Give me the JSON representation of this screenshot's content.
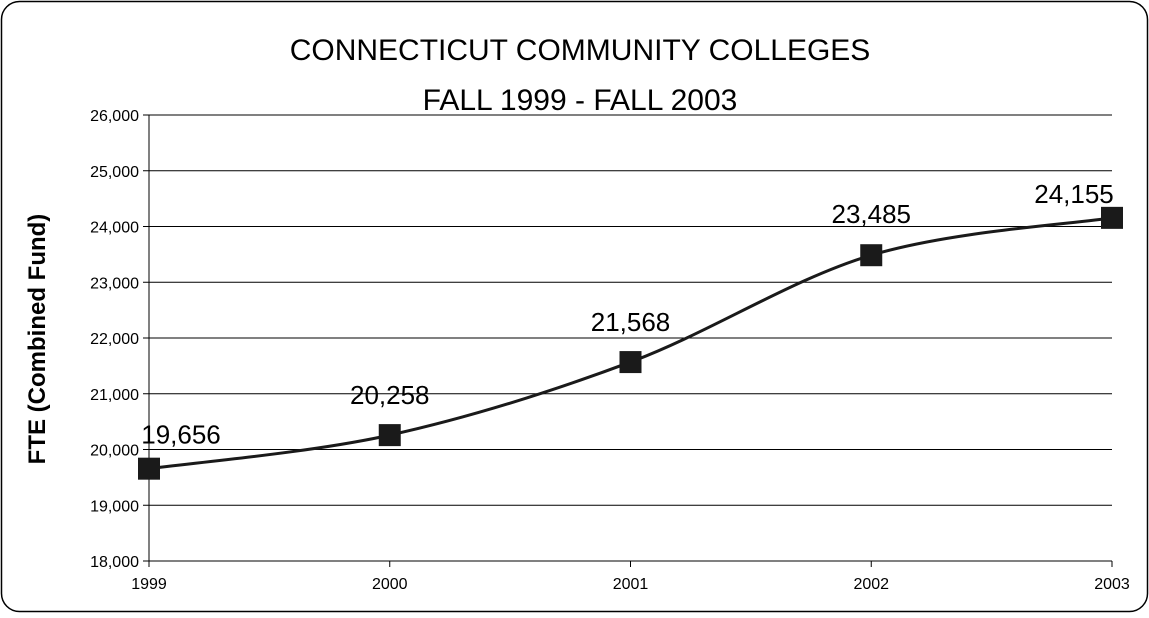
{
  "chart_data": {
    "type": "line",
    "title": [
      "CONNECTICUT COMMUNITY COLLEGES",
      "FALL 1999 - FALL 2003"
    ],
    "xlabel": "",
    "ylabel": "FTE (Combined Fund)",
    "categories": [
      "1999",
      "2000",
      "2001",
      "2002",
      "2003"
    ],
    "values": [
      19656,
      20258,
      21568,
      23485,
      24155
    ],
    "data_labels": [
      "19,656",
      "20,258",
      "21,568",
      "23,485",
      "24,155"
    ],
    "ylim": [
      18000,
      26000
    ],
    "yticks": [
      18000,
      19000,
      20000,
      21000,
      22000,
      23000,
      24000,
      25000,
      26000
    ],
    "ytick_labels": [
      "18,000",
      "19,000",
      "20,000",
      "21,000",
      "22,000",
      "23,000",
      "24,000",
      "25,000",
      "26,000"
    ],
    "grid": true,
    "legend": "none",
    "smooth": true,
    "marker": "square",
    "line_color": "#1a1a1a",
    "marker_color": "#1a1a1a"
  }
}
